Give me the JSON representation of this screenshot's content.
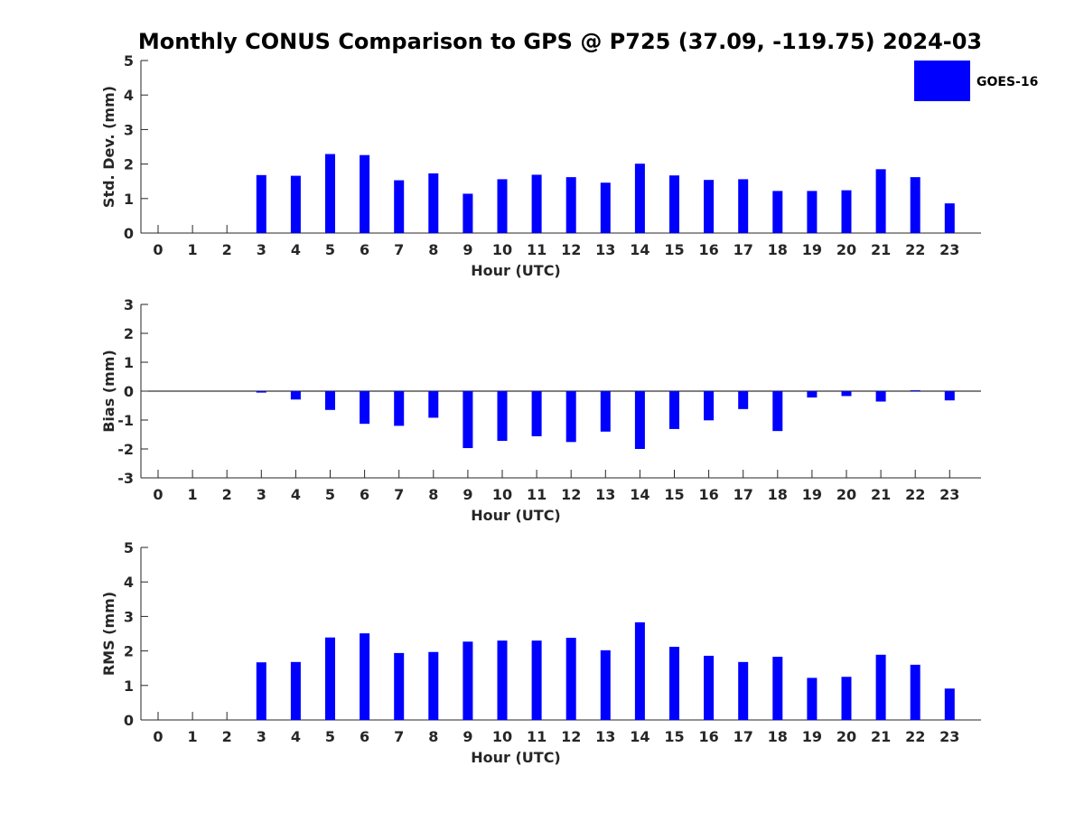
{
  "title": "Monthly CONUS Comparison to GPS @ P725 (37.09, -119.75) 2024-03",
  "legend": {
    "label": "GOES-16",
    "color": "#0000ff"
  },
  "chart_data": [
    {
      "type": "bar",
      "xlabel": "Hour (UTC)",
      "ylabel": "Std. Dev. (mm)",
      "ylim": [
        0,
        5
      ],
      "yticks": [
        "0",
        "1",
        "2",
        "3",
        "4",
        "5"
      ],
      "categories": [
        "0",
        "1",
        "2",
        "3",
        "4",
        "5",
        "6",
        "7",
        "8",
        "9",
        "10",
        "11",
        "12",
        "13",
        "14",
        "15",
        "16",
        "17",
        "18",
        "19",
        "20",
        "21",
        "22",
        "23"
      ],
      "series": [
        {
          "name": "GOES-16",
          "values": [
            null,
            null,
            null,
            1.68,
            1.66,
            2.29,
            2.26,
            1.53,
            1.73,
            1.14,
            1.56,
            1.69,
            1.62,
            1.46,
            2.01,
            1.67,
            1.54,
            1.56,
            1.22,
            1.22,
            1.24,
            1.85,
            1.62,
            0.86
          ]
        }
      ],
      "legend_position": "top-right",
      "grid": false
    },
    {
      "type": "bar",
      "xlabel": "Hour (UTC)",
      "ylabel": "Bias (mm)",
      "ylim": [
        -3,
        3
      ],
      "yticks": [
        "-3",
        "-2",
        "-1",
        "0",
        "1",
        "2",
        "3"
      ],
      "categories": [
        "0",
        "1",
        "2",
        "3",
        "4",
        "5",
        "6",
        "7",
        "8",
        "9",
        "10",
        "11",
        "12",
        "13",
        "14",
        "15",
        "16",
        "17",
        "18",
        "19",
        "20",
        "21",
        "22",
        "23"
      ],
      "series": [
        {
          "name": "GOES-16",
          "values": [
            null,
            null,
            null,
            -0.05,
            -0.29,
            -0.65,
            -1.13,
            -1.2,
            -0.92,
            -1.97,
            -1.72,
            -1.56,
            -1.76,
            -1.4,
            -2.0,
            -1.31,
            -1.01,
            -0.62,
            -1.38,
            -0.22,
            -0.17,
            -0.36,
            0.03,
            -0.32
          ]
        }
      ],
      "grid": false
    },
    {
      "type": "bar",
      "xlabel": "Hour (UTC)",
      "ylabel": "RMS (mm)",
      "ylim": [
        0,
        5
      ],
      "yticks": [
        "0",
        "1",
        "2",
        "3",
        "4",
        "5"
      ],
      "categories": [
        "0",
        "1",
        "2",
        "3",
        "4",
        "5",
        "6",
        "7",
        "8",
        "9",
        "10",
        "11",
        "12",
        "13",
        "14",
        "15",
        "16",
        "17",
        "18",
        "19",
        "20",
        "21",
        "22",
        "23"
      ],
      "series": [
        {
          "name": "GOES-16",
          "values": [
            null,
            null,
            null,
            1.67,
            1.68,
            2.39,
            2.51,
            1.94,
            1.97,
            2.27,
            2.3,
            2.3,
            2.38,
            2.02,
            2.83,
            2.12,
            1.86,
            1.68,
            1.83,
            1.22,
            1.25,
            1.89,
            1.6,
            0.91
          ]
        }
      ],
      "grid": false
    }
  ]
}
